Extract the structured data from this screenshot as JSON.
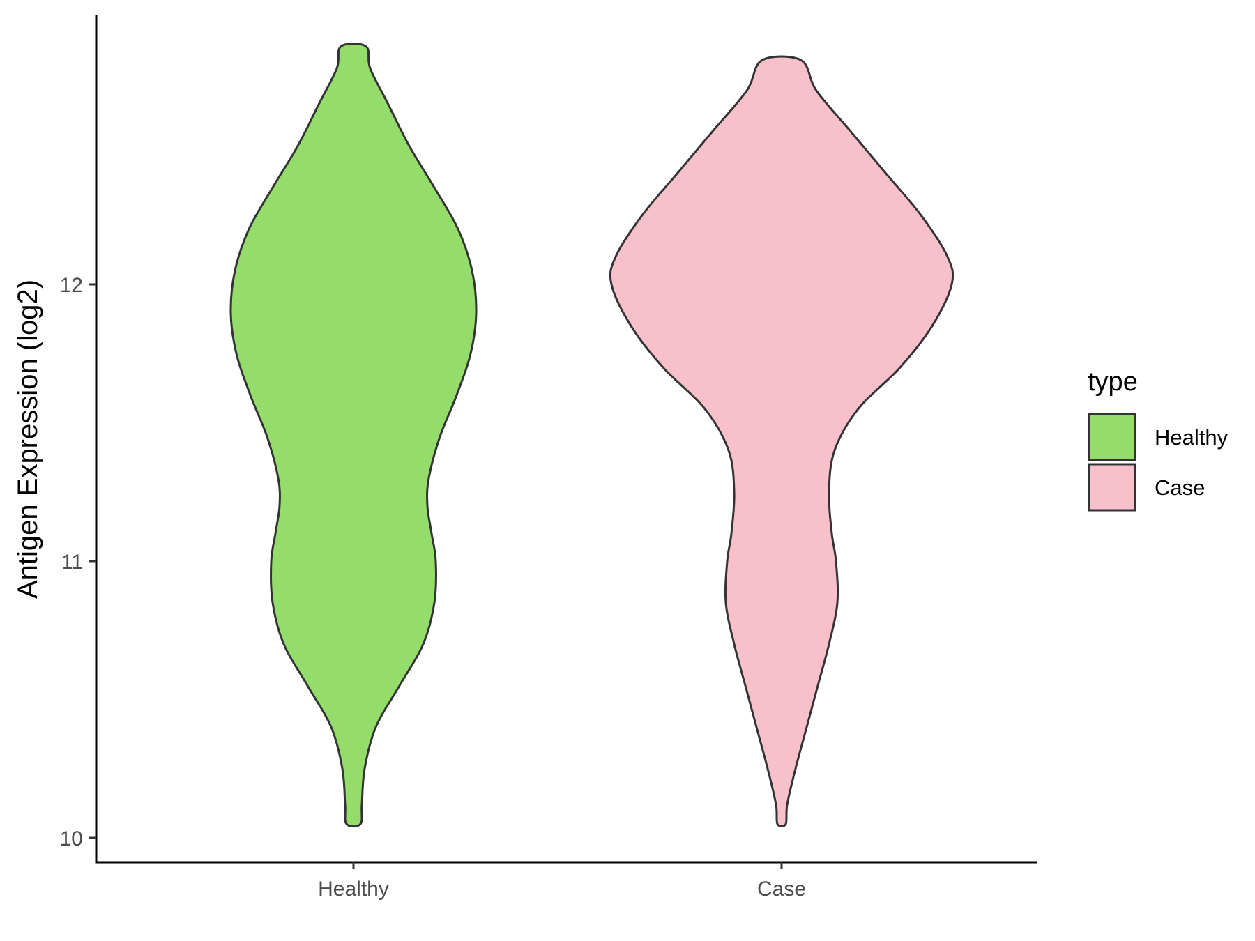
{
  "chart_data": {
    "type": "violin",
    "title": "",
    "xlabel": "",
    "ylabel": "Antigen Expression (log2)",
    "ylim": [
      9.9,
      13.0
    ],
    "y_ticks": [
      10,
      11,
      12
    ],
    "y_tick_labels": [
      "10",
      "11",
      "12"
    ],
    "categories": [
      "Healthy",
      "Case"
    ],
    "grid": false,
    "legend": {
      "title": "type",
      "position": "right",
      "entries": [
        {
          "label": "Healthy",
          "color": "#95dd6b"
        },
        {
          "label": "Case",
          "color": "#f7c0cb"
        }
      ]
    },
    "series": [
      {
        "name": "Healthy",
        "color": "#95dd6b",
        "min": 10.05,
        "max": 12.86,
        "density_profile": [
          {
            "y": 10.05,
            "half_width": 0.05
          },
          {
            "y": 10.12,
            "half_width": 0.06
          },
          {
            "y": 10.25,
            "half_width": 0.08
          },
          {
            "y": 10.4,
            "half_width": 0.16
          },
          {
            "y": 10.55,
            "half_width": 0.33
          },
          {
            "y": 10.7,
            "half_width": 0.5
          },
          {
            "y": 10.85,
            "half_width": 0.58
          },
          {
            "y": 11.0,
            "half_width": 0.59
          },
          {
            "y": 11.1,
            "half_width": 0.56
          },
          {
            "y": 11.2,
            "half_width": 0.53
          },
          {
            "y": 11.3,
            "half_width": 0.54
          },
          {
            "y": 11.45,
            "half_width": 0.62
          },
          {
            "y": 11.6,
            "half_width": 0.74
          },
          {
            "y": 11.75,
            "half_width": 0.84
          },
          {
            "y": 11.9,
            "half_width": 0.88
          },
          {
            "y": 12.05,
            "half_width": 0.85
          },
          {
            "y": 12.2,
            "half_width": 0.75
          },
          {
            "y": 12.35,
            "half_width": 0.58
          },
          {
            "y": 12.5,
            "half_width": 0.4
          },
          {
            "y": 12.65,
            "half_width": 0.25
          },
          {
            "y": 12.78,
            "half_width": 0.12
          },
          {
            "y": 12.86,
            "half_width": 0.09
          }
        ]
      },
      {
        "name": "Case",
        "color": "#f7c0cb",
        "min": 10.05,
        "max": 12.81,
        "density_profile": [
          {
            "y": 10.05,
            "half_width": 0.03
          },
          {
            "y": 10.12,
            "half_width": 0.04
          },
          {
            "y": 10.25,
            "half_width": 0.1
          },
          {
            "y": 10.4,
            "half_width": 0.18
          },
          {
            "y": 10.55,
            "half_width": 0.26
          },
          {
            "y": 10.7,
            "half_width": 0.34
          },
          {
            "y": 10.85,
            "half_width": 0.4
          },
          {
            "y": 11.0,
            "half_width": 0.39
          },
          {
            "y": 11.1,
            "half_width": 0.36
          },
          {
            "y": 11.25,
            "half_width": 0.34
          },
          {
            "y": 11.4,
            "half_width": 0.38
          },
          {
            "y": 11.55,
            "half_width": 0.55
          },
          {
            "y": 11.7,
            "half_width": 0.85
          },
          {
            "y": 11.85,
            "half_width": 1.08
          },
          {
            "y": 12.0,
            "half_width": 1.22
          },
          {
            "y": 12.1,
            "half_width": 1.19
          },
          {
            "y": 12.25,
            "half_width": 1.0
          },
          {
            "y": 12.4,
            "half_width": 0.75
          },
          {
            "y": 12.55,
            "half_width": 0.5
          },
          {
            "y": 12.7,
            "half_width": 0.25
          },
          {
            "y": 12.81,
            "half_width": 0.14
          }
        ]
      }
    ]
  }
}
